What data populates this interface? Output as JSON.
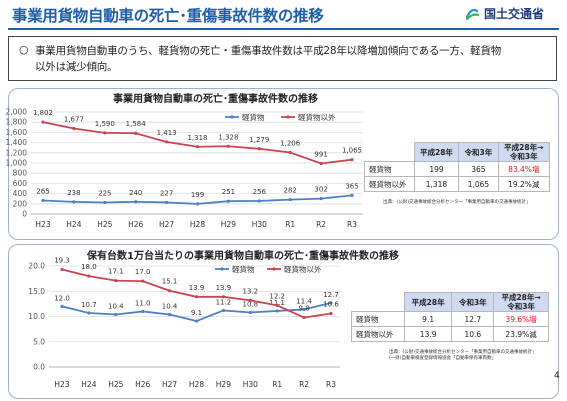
{
  "header": {
    "title": "事業用貨物自動車の死亡･重傷事故件数の推移",
    "logo_text": "国土交通省"
  },
  "summary": {
    "bullet": "○",
    "line1": "事業用貨物自動車のうち、軽貨物の死亡・重傷事故件数は平成28年以降増加傾向である一方、軽貨物",
    "line2": "以外は減少傾向。"
  },
  "colors": {
    "light_cargo": "#4d80c4",
    "other_cargo": "#c9454f",
    "accent_title": "#1f5fa8",
    "table_header": "#cfdaf0",
    "increase_text": "#e0161e"
  },
  "chart_data": [
    {
      "type": "line",
      "title": "事業用貨物自動車の死亡･重傷事故件数の推移",
      "categories": [
        "H23",
        "H24",
        "H25",
        "H26",
        "H27",
        "H28",
        "H29",
        "H30",
        "R1",
        "R2",
        "R3"
      ],
      "series": [
        {
          "name": "軽貨物",
          "values": [
            265,
            238,
            225,
            240,
            227,
            199,
            251,
            256,
            282,
            302,
            365
          ]
        },
        {
          "name": "軽貨物以外",
          "values": [
            1802,
            1677,
            1590,
            1584,
            1413,
            1318,
            1328,
            1279,
            1206,
            991,
            1065
          ]
        }
      ],
      "value_labels": {
        "軽貨物": [
          "265",
          "238",
          "225",
          "240",
          "227",
          "199",
          "251",
          "256",
          "282",
          "302",
          "365"
        ],
        "軽貨物以外": [
          "1,802",
          "1,677",
          "1,590",
          "1,584",
          "1,413",
          "1,318",
          "1,328",
          "1,279",
          "1,206",
          "991",
          "1,065"
        ]
      },
      "ylim": [
        0,
        2000
      ],
      "yticks": [
        "0",
        "200",
        "400",
        "600",
        "800",
        "1,000",
        "1,200",
        "1,400",
        "1,600",
        "1,800",
        "2,000"
      ],
      "grid": true,
      "legend": "top-center"
    },
    {
      "type": "line",
      "title": "保有台数1万台当たりの事業用貨物自動車の死亡･重傷事故件数の推移",
      "categories": [
        "H23",
        "H24",
        "H25",
        "H26",
        "H27",
        "H28",
        "H29",
        "H30",
        "R1",
        "R2",
        "R3"
      ],
      "series": [
        {
          "name": "軽貨物",
          "values": [
            12.0,
            10.7,
            10.4,
            11.0,
            10.4,
            9.1,
            11.2,
            10.8,
            11.1,
            11.4,
            12.7
          ]
        },
        {
          "name": "軽貨物以外",
          "values": [
            19.3,
            18.0,
            17.1,
            17.0,
            15.1,
            13.9,
            13.9,
            13.2,
            12.2,
            9.8,
            10.6
          ]
        }
      ],
      "value_labels": {
        "軽貨物": [
          "12.0",
          "10.7",
          "10.4",
          "11.0",
          "10.4",
          "9.1",
          "11.2",
          "10.8",
          "11.1",
          "11.4",
          "12.7"
        ],
        "軽貨物以外": [
          "19.3",
          "18.0",
          "17.1",
          "17.0",
          "15.1",
          "13.9",
          "13.9",
          "13.2",
          "12.2",
          "9.8",
          "10.6"
        ]
      },
      "ylim": [
        0,
        20
      ],
      "yticks": [
        "0.0",
        "5.0",
        "10.0",
        "15.0",
        "20.0"
      ],
      "grid": true,
      "legend": "top-center"
    }
  ],
  "table1": {
    "headers": [
      "平成28年",
      "令和3年",
      "平成28年→\n令和3年"
    ],
    "rows": [
      {
        "label": "軽貨物",
        "h28": "199",
        "r3": "365",
        "change": "83.4%増"
      },
      {
        "label": "軽貨物以外",
        "h28": "1,318",
        "r3": "1,065",
        "change": "19.2%減"
      }
    ],
    "source": "出典：(公財)交通事故総合分析センター「事業用自動車の交通事故統計」"
  },
  "table2": {
    "headers": [
      "平成28年",
      "令和3年",
      "平成28年→\n令和3年"
    ],
    "rows": [
      {
        "label": "軽貨物",
        "h28": "9.1",
        "r3": "12.7",
        "change": "39.6%増"
      },
      {
        "label": "軽貨物以外",
        "h28": "13.9",
        "r3": "10.6",
        "change": "23.9%減"
      }
    ],
    "source_line1": "出典：(公財)交通事故総合分析センター「事業用自動車の交通事故統計」",
    "source_line2": "(一財)自動車検査登録情報協会「自動車保有車両数」"
  },
  "page_number": "4"
}
